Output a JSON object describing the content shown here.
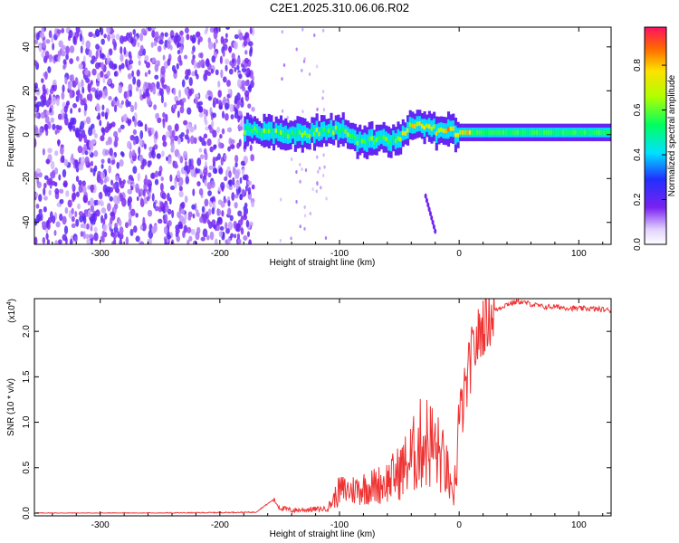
{
  "title": "C2E1.2025.310.06.06.R02",
  "colors": {
    "background_dot": "#7b2cf0",
    "signal_line": "#ee3333",
    "axis": "#000000"
  },
  "chart_data": [
    {
      "type": "heatmap",
      "name": "spectrogram",
      "xlabel": "Height of straight line (km)",
      "ylabel": "Frequency (Hz)",
      "xlim": [
        -355,
        127
      ],
      "ylim": [
        -50,
        49
      ],
      "xticks": [
        -300,
        -200,
        -100,
        0,
        100
      ],
      "yticks": [
        -40,
        -20,
        0,
        20,
        40
      ],
      "colorbar": {
        "label": "Normalized spectral amplitude",
        "range": [
          0,
          0.97
        ],
        "ticks": [
          0.0,
          0.2,
          0.4,
          0.6,
          0.8
        ],
        "tick_labels": [
          "0.0",
          "0.2",
          "0.4",
          "0.6",
          "0.8"
        ]
      },
      "features": {
        "noise_region_km": [
          -355,
          -172
        ],
        "signal_start_km": -180,
        "signal_center_hz": [
          [
            -180,
            2
          ],
          [
            -160,
            1
          ],
          [
            -140,
            0
          ],
          [
            -120,
            1
          ],
          [
            -100,
            2
          ],
          [
            -90,
            -2
          ],
          [
            -80,
            -3
          ],
          [
            -70,
            -2
          ],
          [
            -60,
            -3
          ],
          [
            -50,
            -2
          ],
          [
            -40,
            5
          ],
          [
            -20,
            2
          ],
          [
            0,
            1
          ],
          [
            50,
            1
          ],
          [
            127,
            1
          ]
        ],
        "secondary_track": [
          [
            -28,
            -28
          ],
          [
            -20,
            -44
          ]
        ]
      }
    },
    {
      "type": "line",
      "name": "snr",
      "xlabel": "Height of straight line (km)",
      "ylabel": "SNR (10 * v/v)",
      "scale_label": "(x10",
      "scale_exponent": "4",
      "xlim": [
        -355,
        127
      ],
      "ylim": [
        -0.03,
        2.36
      ],
      "xticks": [
        -300,
        -200,
        -100,
        0,
        100
      ],
      "yticks": [
        0.0,
        0.5,
        1.0,
        1.5,
        2.0
      ],
      "ytick_labels": [
        "0.0",
        "0.5",
        "1.0",
        "1.5",
        "2.0"
      ],
      "series": [
        {
          "name": "SNR",
          "x": [
            -355,
            -250,
            -170,
            -155,
            -150,
            -140,
            -110,
            -100,
            -90,
            -80,
            -70,
            -60,
            -50,
            -40,
            -30,
            -25,
            -20,
            -15,
            -10,
            -5,
            0,
            5,
            10,
            20,
            30,
            40,
            50,
            60,
            70,
            80,
            90,
            100,
            110,
            120,
            127
          ],
          "values": [
            0.0,
            0.0,
            0.01,
            0.15,
            0.06,
            0.03,
            0.05,
            0.25,
            0.25,
            0.28,
            0.3,
            0.35,
            0.45,
            0.6,
            0.8,
            0.78,
            0.7,
            0.6,
            0.45,
            0.1,
            1.0,
            1.3,
            1.7,
            2.08,
            2.23,
            2.3,
            2.33,
            2.3,
            2.27,
            2.27,
            2.26,
            2.25,
            2.25,
            2.24,
            2.23
          ]
        }
      ]
    }
  ]
}
